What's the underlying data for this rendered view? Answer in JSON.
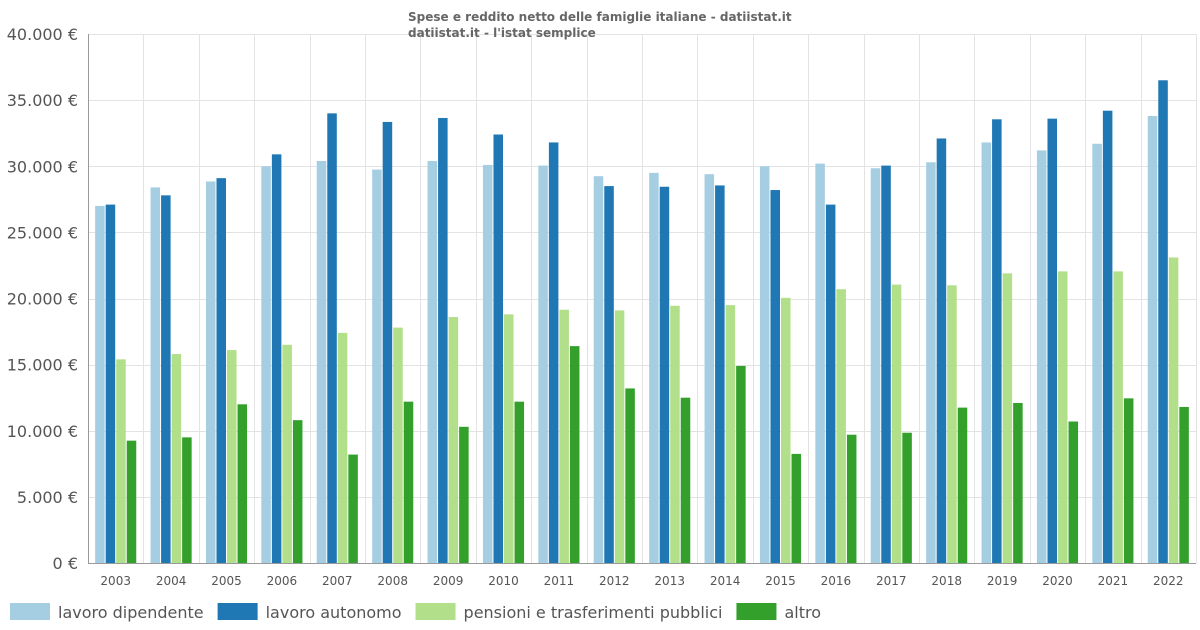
{
  "chart_data": {
    "type": "bar",
    "title": "Spese e reddito netto delle famiglie italiane - datiistat.it",
    "subtitle": "datiistat.it - l'istat semplice",
    "xlabel": "",
    "ylabel": "",
    "ylim": [
      0,
      40000
    ],
    "yticks": [
      0,
      5000,
      10000,
      15000,
      20000,
      25000,
      30000,
      35000,
      40000
    ],
    "ytick_labels": [
      "0 €",
      "5.000 €",
      "10.000 €",
      "15.000 €",
      "20.000 €",
      "25.000 €",
      "30.000 €",
      "35.000 €",
      "40.000 €"
    ],
    "grid": true,
    "legend_position": "bottom",
    "categories": [
      "2003",
      "2004",
      "2005",
      "2006",
      "2007",
      "2008",
      "2009",
      "2010",
      "2011",
      "2012",
      "2013",
      "2014",
      "2015",
      "2016",
      "2017",
      "2018",
      "2019",
      "2020",
      "2021",
      "2022"
    ],
    "series": [
      {
        "name": "lavoro dipendente",
        "color": "#a6cee3",
        "values": [
          27000,
          28400,
          28850,
          30000,
          30400,
          29750,
          30400,
          30100,
          30050,
          29250,
          29500,
          29400,
          30000,
          30200,
          29850,
          30300,
          31800,
          31200,
          31700,
          33800
        ]
      },
      {
        "name": "lavoro autonomo",
        "color": "#1f78b4",
        "values": [
          27100,
          27800,
          29100,
          30900,
          34000,
          33350,
          33650,
          32400,
          31800,
          28500,
          28450,
          28550,
          28200,
          27100,
          30050,
          32100,
          33550,
          33600,
          34200,
          36500
        ]
      },
      {
        "name": "pensioni e trasferimenti pubblici",
        "color": "#b2df8a",
        "values": [
          15400,
          15800,
          16100,
          16500,
          17400,
          17800,
          18600,
          18800,
          19150,
          19100,
          19450,
          19500,
          20050,
          20700,
          21050,
          21000,
          21900,
          22050,
          22050,
          23100
        ]
      },
      {
        "name": "altro",
        "color": "#33a02c",
        "values": [
          9250,
          9500,
          12000,
          10800,
          8200,
          12200,
          10300,
          12200,
          16400,
          13200,
          12500,
          14900,
          8250,
          9700,
          9850,
          11750,
          12100,
          10700,
          12450,
          11800
        ]
      }
    ]
  },
  "colors": {
    "background": "#ffffff",
    "grid": "#e3e3e3",
    "axis": "#999999",
    "text": "#555555"
  }
}
